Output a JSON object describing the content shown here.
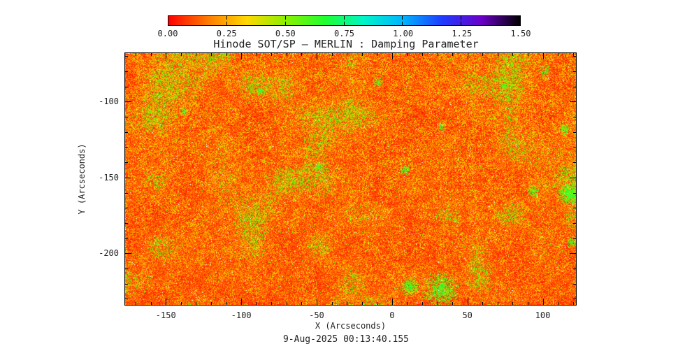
{
  "chart_data": {
    "type": "heatmap",
    "title": "Hinode SOT/SP — MERLIN : Damping Parameter",
    "xlabel": "X (Arcseconds)",
    "ylabel": "Y (Arcseconds)",
    "caption": "9-Aug-2025 00:13:40.155",
    "xlim": [
      -177,
      122
    ],
    "ylim": [
      -234,
      -68
    ],
    "xticks": [
      -150,
      -100,
      -50,
      0,
      50,
      100
    ],
    "yticks": [
      -100,
      -150,
      -200
    ],
    "minor_tick_step": 10,
    "colorbar": {
      "min": 0.0,
      "max": 1.5,
      "ticks": [
        "0.00",
        "0.25",
        "0.50",
        "0.75",
        "1.00",
        "1.25",
        "1.50"
      ],
      "colors": [
        "#ff0000",
        "#ff7a00",
        "#ffd800",
        "#8cf000",
        "#1eff2e",
        "#00f5c8",
        "#00b4ff",
        "#1e3cff",
        "#6a00c8",
        "#000000"
      ]
    },
    "field": {
      "description": "Granular solar damping-parameter map: dominated by values 0.0-0.35 (red/orange speckle), scattered 0.5-0.75 patches (green), rare saturated white pixels; slightly redder toward the bottom",
      "seed": 1234,
      "green_patches": [
        [
          0.7,
          0.94,
          0.045
        ],
        [
          0.63,
          0.925,
          0.025
        ],
        [
          0.985,
          0.56,
          0.028
        ],
        [
          0.905,
          0.545,
          0.016
        ],
        [
          0.93,
          0.07,
          0.015
        ],
        [
          0.62,
          0.46,
          0.014
        ],
        [
          0.43,
          0.45,
          0.013
        ],
        [
          0.975,
          0.3,
          0.014
        ],
        [
          0.7,
          0.295,
          0.012
        ],
        [
          0.3,
          0.15,
          0.011
        ],
        [
          0.56,
          0.115,
          0.013
        ],
        [
          0.13,
          0.23,
          0.01
        ],
        [
          0.84,
          0.13,
          0.011
        ],
        [
          0.99,
          0.75,
          0.014
        ]
      ]
    },
    "colors": {
      "text": "#222222",
      "axis": "#000000",
      "background": "#ffffff"
    }
  }
}
